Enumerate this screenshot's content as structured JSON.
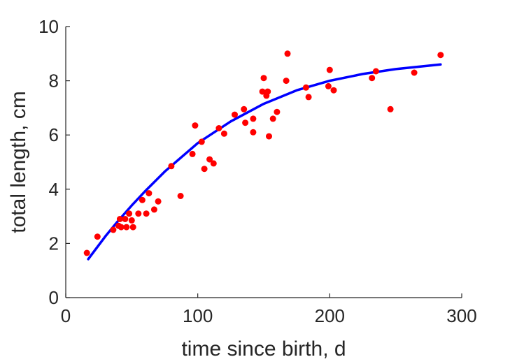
{
  "chart_data": {
    "type": "scatter",
    "title": "",
    "xlabel": "time since birth, d",
    "ylabel": "total length, cm",
    "xlim": [
      0,
      300
    ],
    "ylim": [
      0,
      10
    ],
    "xticks": [
      0,
      100,
      200,
      300
    ],
    "yticks": [
      0,
      2,
      4,
      6,
      8,
      10
    ],
    "grid": false,
    "colors": {
      "points": "#ff0000",
      "fit": "#0000ff",
      "axes": "#262626"
    },
    "series": [
      {
        "type": "scatter",
        "points": [
          [
            16,
            1.65
          ],
          [
            24,
            2.25
          ],
          [
            36,
            2.5
          ],
          [
            40,
            2.65
          ],
          [
            41,
            2.9
          ],
          [
            42,
            2.6
          ],
          [
            45,
            2.9
          ],
          [
            46,
            2.6
          ],
          [
            48,
            3.1
          ],
          [
            50,
            2.85
          ],
          [
            51,
            2.6
          ],
          [
            55,
            3.1
          ],
          [
            58,
            3.6
          ],
          [
            61,
            3.1
          ],
          [
            63,
            3.85
          ],
          [
            67,
            3.25
          ],
          [
            70,
            3.55
          ],
          [
            80,
            4.85
          ],
          [
            87,
            3.75
          ],
          [
            96,
            5.3
          ],
          [
            98,
            6.35
          ],
          [
            103,
            5.75
          ],
          [
            105,
            4.75
          ],
          [
            109,
            5.1
          ],
          [
            112,
            4.95
          ],
          [
            116,
            6.25
          ],
          [
            120,
            6.05
          ],
          [
            128,
            6.75
          ],
          [
            135,
            6.95
          ],
          [
            136,
            6.45
          ],
          [
            142,
            6.1
          ],
          [
            142,
            6.6
          ],
          [
            149,
            7.6
          ],
          [
            150,
            8.1
          ],
          [
            152,
            7.45
          ],
          [
            153,
            7.6
          ],
          [
            154,
            5.95
          ],
          [
            157,
            6.6
          ],
          [
            160,
            6.85
          ],
          [
            167,
            8.0
          ],
          [
            168,
            9.0
          ],
          [
            182,
            7.75
          ],
          [
            184,
            7.4
          ],
          [
            199,
            7.8
          ],
          [
            200,
            8.4
          ],
          [
            203,
            7.65
          ],
          [
            232,
            8.1
          ],
          [
            235,
            8.35
          ],
          [
            246,
            6.95
          ],
          [
            264,
            8.3
          ],
          [
            284,
            8.95
          ]
        ]
      },
      {
        "type": "line",
        "points": [
          [
            17,
            1.42
          ],
          [
            30,
            2.26
          ],
          [
            40,
            2.85
          ],
          [
            50,
            3.4
          ],
          [
            60,
            3.92
          ],
          [
            75,
            4.65
          ],
          [
            100,
            5.7
          ],
          [
            125,
            6.5
          ],
          [
            150,
            7.15
          ],
          [
            175,
            7.65
          ],
          [
            200,
            8.0
          ],
          [
            225,
            8.25
          ],
          [
            250,
            8.43
          ],
          [
            284,
            8.6
          ]
        ]
      }
    ]
  }
}
